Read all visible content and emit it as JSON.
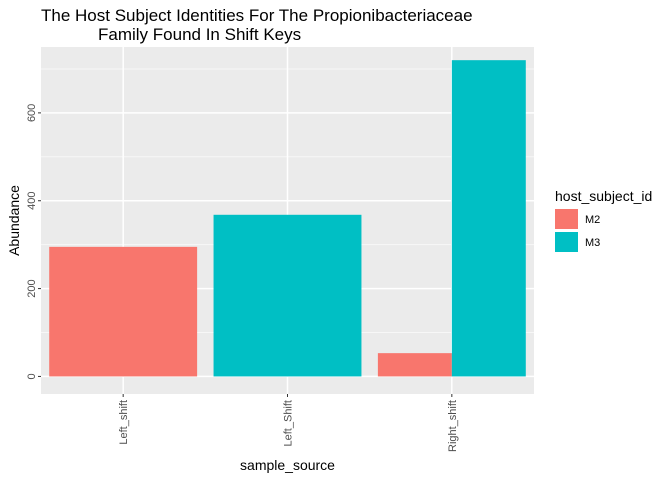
{
  "chart_data": {
    "type": "bar",
    "title_lines": [
      "The Host Subject Identities For The Propionibacteriaceae",
      "Family Found In Shift Keys"
    ],
    "xlabel": "sample_source",
    "ylabel": "Abundance",
    "categories": [
      "Left_shift",
      "Left_Shift",
      "Right_shift"
    ],
    "yticks": [
      0,
      200,
      400,
      600
    ],
    "ylim": [
      -40,
      750
    ],
    "grid": true,
    "legend": {
      "title": "host_subject_id",
      "placement": "right"
    },
    "series": [
      {
        "name": "M2",
        "color": "#F8766D",
        "values": [
          295,
          null,
          53
        ]
      },
      {
        "name": "M3",
        "color": "#00BFC4",
        "values": [
          null,
          368,
          720
        ]
      }
    ]
  }
}
